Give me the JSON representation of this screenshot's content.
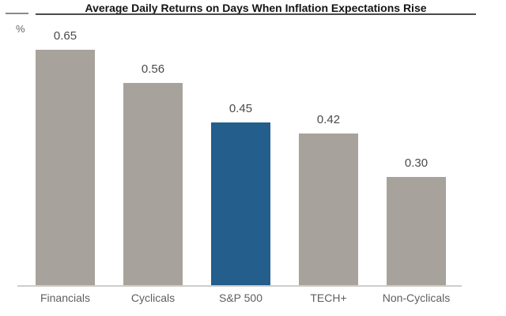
{
  "header": {
    "title": "Average Daily Returns on Days When Inflation Expectations Rise",
    "unit_label": "%"
  },
  "chart_data": {
    "type": "bar",
    "title": "Average Daily Returns on Days When Inflation Expectations Rise",
    "categories": [
      "Financials",
      "Cyclicals",
      "S&P 500",
      "TECH+",
      "Non-Cyclicals"
    ],
    "values": [
      0.65,
      0.56,
      0.45,
      0.42,
      0.3
    ],
    "data_labels": [
      "0.65",
      "0.56",
      "0.45",
      "0.42",
      "0.30"
    ],
    "xlabel": "",
    "ylabel": "%",
    "ylim": [
      0,
      0.74
    ],
    "grid": false,
    "legend": false,
    "highlight_category": "S&P 500",
    "bar_colors": [
      "#a8a29c",
      "#a8a29c",
      "#235e8c",
      "#a8a29c",
      "#a8a29c"
    ],
    "colors": {
      "bar_default": "#a8a29c",
      "bar_highlight": "#235e8c",
      "value_label": "#4a4a4a",
      "axis_label": "#5f5f5f",
      "baseline": "#d0cdca",
      "title": "#141414"
    }
  }
}
